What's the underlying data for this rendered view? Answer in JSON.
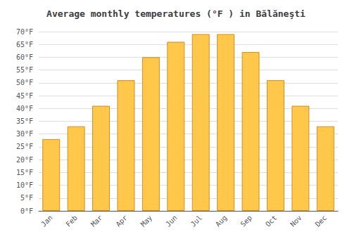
{
  "chart_data": {
    "type": "bar",
    "title": "Average monthly temperatures (°F ) in Bălăneşti",
    "categories": [
      "Jan",
      "Feb",
      "Mar",
      "Apr",
      "May",
      "Jun",
      "Jul",
      "Aug",
      "Sep",
      "Oct",
      "Nov",
      "Dec"
    ],
    "values": [
      28,
      33,
      41,
      51,
      60,
      66,
      69,
      69,
      62,
      51,
      41,
      33
    ],
    "color": "#FFC84A",
    "ylim": [
      0,
      70
    ],
    "yticks": [
      {
        "value": 0,
        "label": "0°F"
      },
      {
        "value": 5,
        "label": "5°F"
      },
      {
        "value": 10,
        "label": "10°F"
      },
      {
        "value": 15,
        "label": "15°F"
      },
      {
        "value": 20,
        "label": "20°F"
      },
      {
        "value": 25,
        "label": "25°F"
      },
      {
        "value": 30,
        "label": "30°F"
      },
      {
        "value": 35,
        "label": "35°F"
      },
      {
        "value": 40,
        "label": "40°F"
      },
      {
        "value": 45,
        "label": "45°F"
      },
      {
        "value": 50,
        "label": "50°F"
      },
      {
        "value": 55,
        "label": "55°F"
      },
      {
        "value": 60,
        "label": "60°F"
      },
      {
        "value": 65,
        "label": "65°F"
      },
      {
        "value": 70,
        "label": "70°F"
      }
    ],
    "grid": true
  }
}
